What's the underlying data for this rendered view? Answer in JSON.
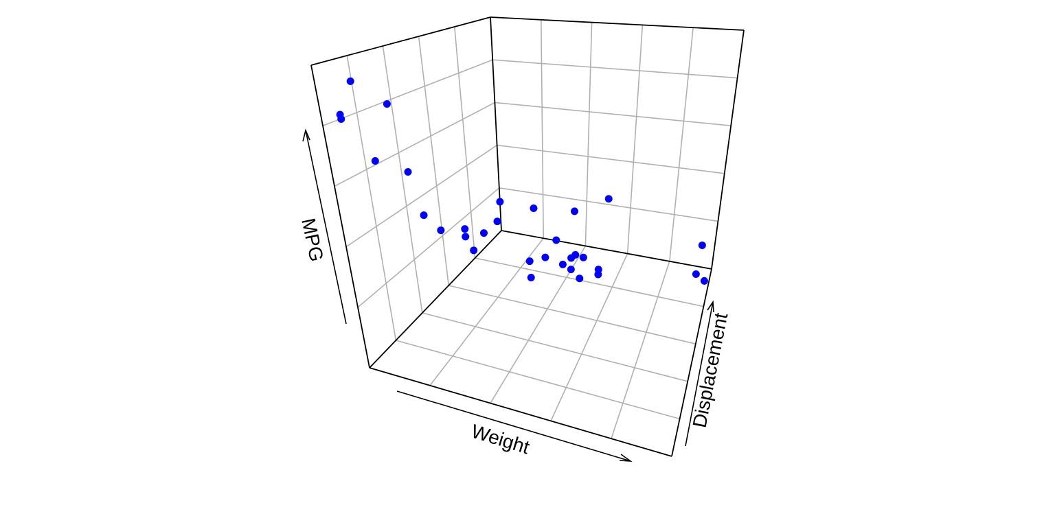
{
  "chart_data": {
    "type": "scatter3d",
    "x_label": "Weight",
    "y_label": "MPG",
    "z_label": "Displacement",
    "xlim": [
      1.5,
      5.5
    ],
    "ylim": [
      10,
      35
    ],
    "zlim": [
      50,
      500
    ],
    "grid": true,
    "series": [
      {
        "color": "#0000ff",
        "x": [
          2.62,
          2.875,
          2.32,
          3.215,
          3.44,
          3.46,
          3.57,
          3.19,
          3.15,
          3.44,
          3.44,
          4.07,
          3.73,
          3.78,
          5.25,
          5.424,
          5.345,
          2.2,
          1.615,
          1.835,
          2.465,
          3.52,
          3.435,
          3.84,
          3.845,
          1.935,
          2.14,
          1.513,
          3.17,
          2.77,
          3.57,
          2.78
        ],
        "y": [
          21,
          21,
          22.8,
          21.4,
          18.7,
          18.1,
          14.3,
          24.4,
          22.8,
          19.2,
          17.8,
          16.4,
          17.3,
          15.2,
          10.4,
          10.4,
          14.7,
          32.4,
          30.4,
          33.9,
          21.5,
          15.5,
          15.2,
          13.3,
          19.2,
          27.3,
          26,
          30.4,
          15.8,
          19.7,
          15,
          21.4
        ],
        "z": [
          160,
          160,
          108,
          258,
          360,
          225,
          360,
          146.7,
          140.8,
          167.6,
          167.6,
          275.8,
          275.8,
          275.8,
          472,
          460,
          440,
          78.7,
          75.7,
          71.1,
          120.1,
          318,
          304,
          350,
          400,
          79,
          120.3,
          95.1,
          351,
          145,
          301,
          121
        ]
      }
    ]
  }
}
